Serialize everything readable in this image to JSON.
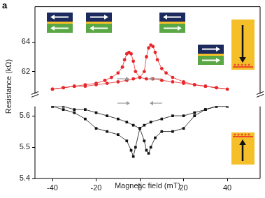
{
  "chart_data": [
    {
      "type": "line",
      "annotations": [
        "a"
      ],
      "x": [
        -40,
        -35,
        -30,
        -25,
        -20,
        -15,
        -10,
        -6,
        -3,
        0,
        2,
        3,
        4,
        5,
        6,
        7,
        8,
        10,
        12,
        15,
        20,
        25,
        30,
        35,
        40,
        35,
        30,
        25,
        20,
        15,
        10,
        6,
        3,
        0,
        -2,
        -3,
        -4,
        -5,
        -6,
        -7,
        -8,
        -10,
        -13,
        -16,
        -20,
        -25,
        -30,
        -35,
        -40
      ],
      "series": [
        {
          "color": "#e8262a",
          "marker": "circle",
          "line_style": "solid",
          "values": [
            60.8,
            60.9,
            61.0,
            61.0,
            61.1,
            61.2,
            61.3,
            61.4,
            61.5,
            61.6,
            62.0,
            63.0,
            63.6,
            63.8,
            63.7,
            63.3,
            62.8,
            62.2,
            61.9,
            61.6,
            61.3,
            61.1,
            61.0,
            60.9,
            60.8,
            60.9,
            61.0,
            61.1,
            61.2,
            61.3,
            61.4,
            61.5,
            61.5,
            61.6,
            62.0,
            62.7,
            63.2,
            63.3,
            63.2,
            62.8,
            62.3,
            61.9,
            61.6,
            61.4,
            61.2,
            61.1,
            61.0,
            60.9,
            60.8
          ]
        }
      ],
      "xlim": [
        -48,
        55
      ],
      "ylim": [
        60.4,
        66.4
      ],
      "yticks": [
        62,
        64
      ],
      "tick_labels": "y",
      "grid": false
    },
    {
      "type": "line",
      "x_label": "Magnetic field (mT)",
      "y_label": "Resistance (kΩ)",
      "x": [
        -40,
        -35,
        -30,
        -25,
        -20,
        -15,
        -10,
        -6,
        -3,
        0,
        2,
        3,
        4,
        5,
        7,
        10,
        15,
        20,
        25,
        30,
        35,
        40,
        35,
        30,
        25,
        20,
        15,
        10,
        5,
        2,
        0,
        -2,
        -3,
        -4,
        -6,
        -10,
        -15,
        -20,
        -25,
        -30,
        -35,
        -40
      ],
      "series": [
        {
          "color": "#111111",
          "marker": "square",
          "line_style": "solid",
          "values": [
            5.63,
            5.63,
            5.62,
            5.62,
            5.61,
            5.6,
            5.59,
            5.58,
            5.57,
            5.56,
            5.52,
            5.49,
            5.48,
            5.5,
            5.53,
            5.55,
            5.55,
            5.56,
            5.6,
            5.62,
            5.63,
            5.63,
            5.63,
            5.62,
            5.61,
            5.6,
            5.6,
            5.59,
            5.58,
            5.57,
            5.56,
            5.5,
            5.47,
            5.49,
            5.52,
            5.54,
            5.55,
            5.56,
            5.59,
            5.61,
            5.62,
            5.63
          ]
        }
      ],
      "xlim": [
        -48,
        55
      ],
      "xticks": [
        -40,
        -20,
        0,
        20,
        40
      ],
      "ylim": [
        5.4,
        5.63
      ],
      "yticks": [
        5.4,
        5.5,
        5.6
      ],
      "grid": false
    }
  ]
}
